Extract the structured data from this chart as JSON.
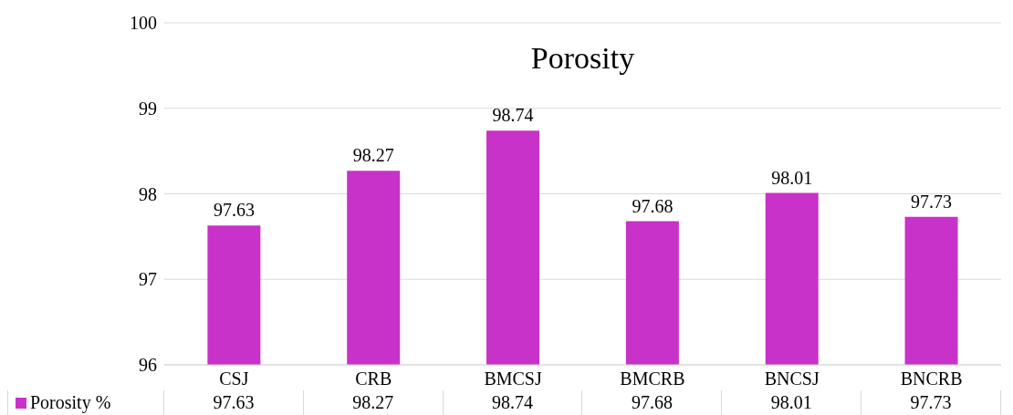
{
  "chart_data": {
    "type": "bar",
    "title": "Porosity",
    "categories": [
      "CSJ",
      "CRB",
      "BMCSJ",
      "BMCRB",
      "BNCSJ",
      "BNCRB"
    ],
    "series": [
      {
        "name": "Porosity %",
        "color": "#c832c8",
        "values": [
          97.63,
          98.27,
          98.74,
          97.68,
          98.01,
          97.73
        ]
      }
    ],
    "annotations": [
      "97.63",
      "98.27",
      "98.74",
      "97.68",
      "98.01",
      "97.73"
    ],
    "ylim": [
      96,
      100
    ],
    "yticks": [
      96,
      97,
      98,
      99,
      100
    ],
    "grid": "y",
    "data_labels": true,
    "legend": "bottom"
  }
}
